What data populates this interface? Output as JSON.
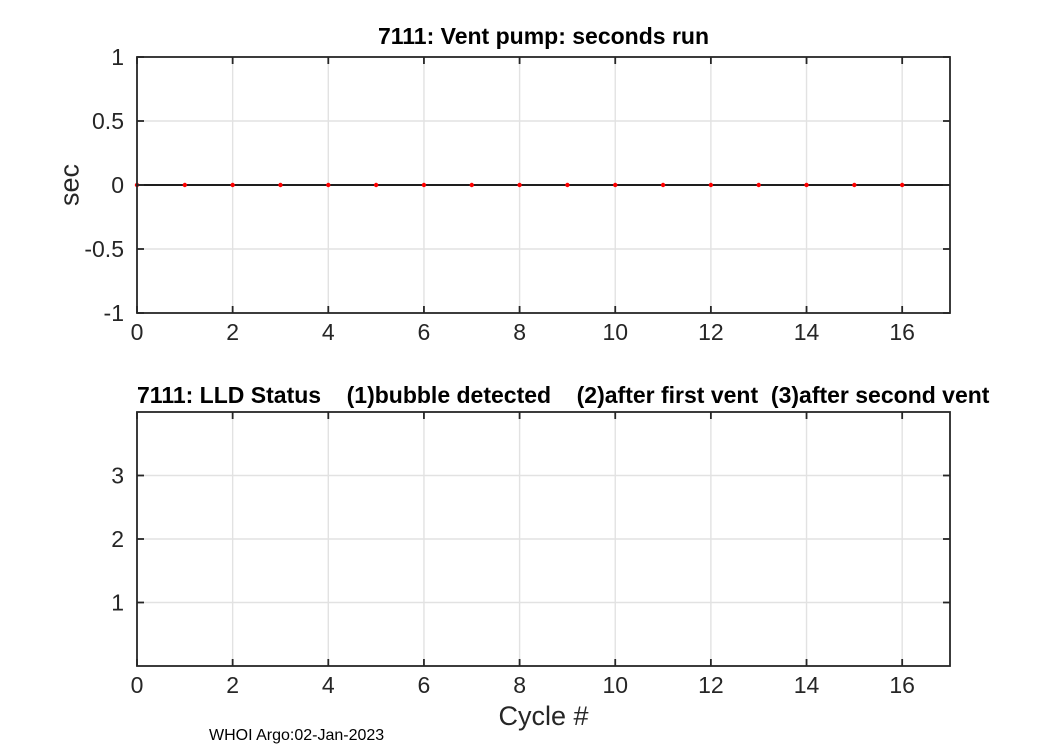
{
  "figure": {
    "background": "#ffffff"
  },
  "colors": {
    "axis": "#262626",
    "grid": "#e2e2e2",
    "tick_label": "#262626",
    "marker_red": "#ff0000",
    "line_black": "#000000"
  },
  "footer": {
    "text": "WHOI Argo:02-Jan-2023"
  },
  "chart_data": [
    {
      "type": "scatter",
      "title": "7111: Vent pump: seconds run",
      "xlabel": "",
      "ylabel": "sec",
      "xlim": [
        0,
        17
      ],
      "ylim": [
        -1,
        1
      ],
      "xticks": [
        0,
        2,
        4,
        6,
        8,
        10,
        12,
        14,
        16
      ],
      "yticks": [
        -1,
        -0.5,
        0,
        0.5,
        1
      ],
      "grid": true,
      "legend": "none",
      "series": [
        {
          "name": "zero reference line",
          "line": true,
          "marker": false,
          "color": "#000000",
          "x": [
            0,
            17
          ],
          "y": [
            0,
            0
          ]
        },
        {
          "name": "vent pump seconds run",
          "line": false,
          "marker": true,
          "color": "#ff0000",
          "x": [
            0,
            1,
            2,
            3,
            4,
            5,
            6,
            7,
            8,
            9,
            10,
            11,
            12,
            13,
            14,
            15,
            16
          ],
          "y": [
            0,
            0,
            0,
            0,
            0,
            0,
            0,
            0,
            0,
            0,
            0,
            0,
            0,
            0,
            0,
            0,
            0
          ]
        }
      ]
    },
    {
      "type": "scatter",
      "title": "7111: LLD Status    (1)bubble detected    (2)after first vent  (3)after second vent",
      "xlabel": "Cycle #",
      "ylabel": "",
      "xlim": [
        0,
        17
      ],
      "ylim": [
        0,
        4
      ],
      "xticks": [
        0,
        2,
        4,
        6,
        8,
        10,
        12,
        14,
        16
      ],
      "yticks": [
        1,
        2,
        3
      ],
      "grid": true,
      "legend": "none",
      "series": []
    }
  ]
}
